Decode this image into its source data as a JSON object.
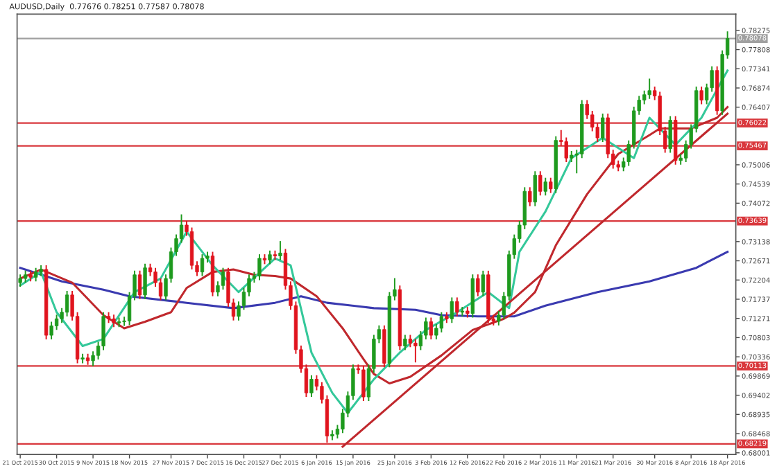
{
  "chart_data": {
    "type": "candlestick",
    "title": "AUDUSD,Daily  0.77676 0.78251 0.77587 0.78078",
    "categories": [
      "21 Oct 2015",
      null,
      null,
      null,
      null,
      null,
      null,
      "30 Oct 2015",
      null,
      null,
      null,
      null,
      null,
      null,
      "9 Nov 2015",
      null,
      null,
      null,
      null,
      null,
      null,
      "18 Nov 2015",
      null,
      null,
      null,
      null,
      null,
      null,
      null,
      "27 Nov 2015",
      null,
      null,
      null,
      null,
      null,
      null,
      "7 Dec 2015",
      null,
      null,
      null,
      null,
      null,
      null,
      "16 Dec 2015",
      null,
      null,
      null,
      null,
      null,
      null,
      "27 Dec 2015",
      null,
      null,
      null,
      null,
      null,
      null,
      "6 Jan 2016",
      null,
      null,
      null,
      null,
      null,
      null,
      "15 Jan 2016",
      null,
      null,
      null,
      null,
      null,
      null,
      null,
      "25 Jan 2016",
      null,
      null,
      null,
      null,
      null,
      null,
      "3 Feb 2016",
      null,
      null,
      null,
      null,
      null,
      null,
      "12 Feb 2016",
      null,
      null,
      null,
      null,
      null,
      null,
      "22 Feb 2016",
      null,
      null,
      null,
      null,
      null,
      null,
      "2 Mar 2016",
      null,
      null,
      null,
      null,
      null,
      null,
      "11 Mar 2016",
      null,
      null,
      null,
      null,
      null,
      null,
      "21 Mar 2016",
      null,
      null,
      null,
      null,
      null,
      null,
      null,
      "30 Mar 2016",
      null,
      null,
      null,
      null,
      null,
      null,
      "8 Apr 2016",
      null,
      null,
      null,
      null,
      null,
      null,
      "18 Apr 2016"
    ],
    "ohlc": [
      [
        0.7214,
        0.7234,
        0.7204,
        0.7224
      ],
      [
        0.7224,
        0.7243,
        0.7214,
        0.7233
      ],
      [
        0.7233,
        0.7243,
        0.7217,
        0.7227
      ],
      [
        0.7227,
        0.725,
        0.7217,
        0.724
      ],
      [
        0.724,
        0.7256,
        0.723,
        0.7246
      ],
      [
        0.7246,
        0.7256,
        0.7076,
        0.7086
      ],
      [
        0.7086,
        0.7119,
        0.7076,
        0.7109
      ],
      [
        0.7109,
        0.7136,
        0.7099,
        0.7126
      ],
      [
        0.7126,
        0.7152,
        0.7116,
        0.7142
      ],
      [
        0.7142,
        0.7194,
        0.7132,
        0.7184
      ],
      [
        0.7184,
        0.7194,
        0.7122,
        0.7132
      ],
      [
        0.7132,
        0.7142,
        0.7018,
        0.7028
      ],
      [
        0.7028,
        0.7041,
        0.7018,
        0.7031
      ],
      [
        0.7031,
        0.7041,
        0.7014,
        0.7024
      ],
      [
        0.7024,
        0.7047,
        0.7011,
        0.7037
      ],
      [
        0.7037,
        0.707,
        0.7027,
        0.706
      ],
      [
        0.706,
        0.7142,
        0.705,
        0.7132
      ],
      [
        0.7132,
        0.7142,
        0.7116,
        0.7126
      ],
      [
        0.7126,
        0.7136,
        0.7106,
        0.7116
      ],
      [
        0.7116,
        0.7129,
        0.7106,
        0.7119
      ],
      [
        0.7119,
        0.7131,
        0.7109,
        0.7121
      ],
      [
        0.7121,
        0.7191,
        0.7111,
        0.7181
      ],
      [
        0.7181,
        0.7243,
        0.7171,
        0.7233
      ],
      [
        0.7233,
        0.7243,
        0.7174,
        0.7184
      ],
      [
        0.7184,
        0.726,
        0.7174,
        0.725
      ],
      [
        0.725,
        0.726,
        0.723,
        0.724
      ],
      [
        0.724,
        0.725,
        0.7204,
        0.7214
      ],
      [
        0.7214,
        0.7224,
        0.7171,
        0.7181
      ],
      [
        0.7181,
        0.7234,
        0.7171,
        0.7224
      ],
      [
        0.7224,
        0.7299,
        0.7214,
        0.7289
      ],
      [
        0.7289,
        0.7331,
        0.7279,
        0.7321
      ],
      [
        0.7321,
        0.738,
        0.7311,
        0.7354
      ],
      [
        0.7354,
        0.7364,
        0.7328,
        0.7338
      ],
      [
        0.7338,
        0.7348,
        0.7246,
        0.7256
      ],
      [
        0.7256,
        0.7266,
        0.723,
        0.724
      ],
      [
        0.724,
        0.7283,
        0.723,
        0.7273
      ],
      [
        0.7273,
        0.7289,
        0.7263,
        0.7279
      ],
      [
        0.7279,
        0.7289,
        0.7181,
        0.7191
      ],
      [
        0.7191,
        0.7217,
        0.7181,
        0.7207
      ],
      [
        0.7207,
        0.725,
        0.7197,
        0.724
      ],
      [
        0.724,
        0.725,
        0.7155,
        0.7165
      ],
      [
        0.7165,
        0.7175,
        0.7122,
        0.7132
      ],
      [
        0.7132,
        0.7168,
        0.7122,
        0.7158
      ],
      [
        0.7158,
        0.7201,
        0.7148,
        0.7191
      ],
      [
        0.7191,
        0.7234,
        0.7181,
        0.7224
      ],
      [
        0.7224,
        0.724,
        0.7214,
        0.723
      ],
      [
        0.723,
        0.7283,
        0.722,
        0.7273
      ],
      [
        0.7273,
        0.7283,
        0.7259,
        0.7269
      ],
      [
        0.7269,
        0.7292,
        0.7259,
        0.7282
      ],
      [
        0.7282,
        0.7292,
        0.7269,
        0.7279
      ],
      [
        0.7279,
        0.7315,
        0.7269,
        0.7286
      ],
      [
        0.7286,
        0.7296,
        0.7197,
        0.7207
      ],
      [
        0.7207,
        0.7217,
        0.7148,
        0.7158
      ],
      [
        0.7158,
        0.7168,
        0.7041,
        0.7051
      ],
      [
        0.7051,
        0.7061,
        0.6995,
        0.7005
      ],
      [
        0.7005,
        0.7015,
        0.6936,
        0.6946
      ],
      [
        0.6946,
        0.6989,
        0.6936,
        0.6979
      ],
      [
        0.6979,
        0.6989,
        0.6952,
        0.6962
      ],
      [
        0.6962,
        0.6972,
        0.692,
        0.693
      ],
      [
        0.693,
        0.694,
        0.6825,
        0.6841
      ],
      [
        0.6841,
        0.6855,
        0.6831,
        0.6845
      ],
      [
        0.6845,
        0.6868,
        0.6835,
        0.6858
      ],
      [
        0.6858,
        0.6907,
        0.6848,
        0.6897
      ],
      [
        0.6897,
        0.6949,
        0.6887,
        0.6939
      ],
      [
        0.6939,
        0.7015,
        0.6929,
        0.7005
      ],
      [
        0.7005,
        0.7015,
        0.6992,
        0.7002
      ],
      [
        0.7002,
        0.7012,
        0.6926,
        0.6936
      ],
      [
        0.6936,
        0.7015,
        0.6926,
        0.7005
      ],
      [
        0.7005,
        0.7087,
        0.6995,
        0.7077
      ],
      [
        0.7077,
        0.711,
        0.7067,
        0.71
      ],
      [
        0.71,
        0.711,
        0.7008,
        0.7018
      ],
      [
        0.7018,
        0.7191,
        0.7008,
        0.7181
      ],
      [
        0.7181,
        0.7225,
        0.7171,
        0.7197
      ],
      [
        0.7197,
        0.7207,
        0.705,
        0.706
      ],
      [
        0.706,
        0.7087,
        0.705,
        0.7077
      ],
      [
        0.7077,
        0.7087,
        0.7057,
        0.7067
      ],
      [
        0.7067,
        0.7077,
        0.702,
        0.706
      ],
      [
        0.706,
        0.7096,
        0.705,
        0.7086
      ],
      [
        0.7086,
        0.7129,
        0.7076,
        0.7119
      ],
      [
        0.7119,
        0.7129,
        0.7076,
        0.7086
      ],
      [
        0.7086,
        0.7113,
        0.7076,
        0.7103
      ],
      [
        0.7103,
        0.7142,
        0.7093,
        0.7132
      ],
      [
        0.7132,
        0.7142,
        0.7116,
        0.7126
      ],
      [
        0.7126,
        0.7178,
        0.7116,
        0.7168
      ],
      [
        0.7168,
        0.7178,
        0.7132,
        0.7142
      ],
      [
        0.7142,
        0.7155,
        0.7132,
        0.7145
      ],
      [
        0.7145,
        0.7155,
        0.7129,
        0.7139
      ],
      [
        0.7139,
        0.7234,
        0.7129,
        0.7224
      ],
      [
        0.7224,
        0.7234,
        0.7181,
        0.7191
      ],
      [
        0.7191,
        0.7243,
        0.7181,
        0.7233
      ],
      [
        0.7233,
        0.7243,
        0.7116,
        0.7126
      ],
      [
        0.7126,
        0.7136,
        0.711,
        0.712
      ],
      [
        0.712,
        0.7145,
        0.711,
        0.7135
      ],
      [
        0.7135,
        0.7191,
        0.7125,
        0.7181
      ],
      [
        0.7181,
        0.7292,
        0.7171,
        0.7282
      ],
      [
        0.7282,
        0.7331,
        0.7272,
        0.7321
      ],
      [
        0.7321,
        0.7364,
        0.7311,
        0.7354
      ],
      [
        0.7354,
        0.7446,
        0.7344,
        0.7436
      ],
      [
        0.7436,
        0.7446,
        0.74,
        0.741
      ],
      [
        0.741,
        0.7485,
        0.74,
        0.7475
      ],
      [
        0.7475,
        0.7485,
        0.7426,
        0.7436
      ],
      [
        0.7436,
        0.7469,
        0.7426,
        0.7459
      ],
      [
        0.7459,
        0.7469,
        0.7432,
        0.7442
      ],
      [
        0.7442,
        0.757,
        0.7432,
        0.756
      ],
      [
        0.756,
        0.7585,
        0.7547,
        0.7557
      ],
      [
        0.7557,
        0.7567,
        0.7507,
        0.7517
      ],
      [
        0.7517,
        0.7534,
        0.7507,
        0.7524
      ],
      [
        0.7524,
        0.7537,
        0.748,
        0.7527
      ],
      [
        0.7527,
        0.7658,
        0.7517,
        0.7648
      ],
      [
        0.7648,
        0.7658,
        0.7612,
        0.7622
      ],
      [
        0.7622,
        0.7632,
        0.7582,
        0.7592
      ],
      [
        0.7592,
        0.7602,
        0.7556,
        0.7566
      ],
      [
        0.7566,
        0.7625,
        0.7556,
        0.7615
      ],
      [
        0.7615,
        0.7625,
        0.7517,
        0.7527
      ],
      [
        0.7527,
        0.7537,
        0.7491,
        0.7501
      ],
      [
        0.7501,
        0.7511,
        0.7485,
        0.7495
      ],
      [
        0.7495,
        0.7518,
        0.7485,
        0.7508
      ],
      [
        0.7508,
        0.756,
        0.7498,
        0.755
      ],
      [
        0.755,
        0.7642,
        0.754,
        0.7632
      ],
      [
        0.7632,
        0.7668,
        0.7622,
        0.7658
      ],
      [
        0.7658,
        0.7681,
        0.7648,
        0.7671
      ],
      [
        0.7671,
        0.771,
        0.7661,
        0.7681
      ],
      [
        0.7681,
        0.7691,
        0.7658,
        0.7668
      ],
      [
        0.7668,
        0.7678,
        0.7573,
        0.7583
      ],
      [
        0.7583,
        0.7593,
        0.753,
        0.754
      ],
      [
        0.754,
        0.7619,
        0.753,
        0.7609
      ],
      [
        0.7609,
        0.7619,
        0.7501,
        0.7511
      ],
      [
        0.7511,
        0.7527,
        0.7501,
        0.7517
      ],
      [
        0.7517,
        0.756,
        0.7507,
        0.755
      ],
      [
        0.755,
        0.7599,
        0.754,
        0.7589
      ],
      [
        0.7589,
        0.7691,
        0.7579,
        0.7681
      ],
      [
        0.7681,
        0.7691,
        0.7648,
        0.7658
      ],
      [
        0.7658,
        0.7698,
        0.7648,
        0.7688
      ],
      [
        0.7688,
        0.774,
        0.7678,
        0.773
      ],
      [
        0.773,
        0.774,
        0.7622,
        0.7632
      ],
      [
        0.7632,
        0.7779,
        0.7622,
        0.7769
      ],
      [
        0.77676,
        0.78251,
        0.77587,
        0.78078
      ]
    ],
    "colors": [
      "#1e9a1e",
      "#1e9a1e",
      "#e0141e",
      "#1e9a1e",
      "#1e9a1e",
      "#e0141e",
      "#1e9a1e",
      "#1e9a1e",
      "#1e9a1e",
      "#1e9a1e",
      "#e0141e",
      "#e0141e",
      "#1e9a1e",
      "#e0141e",
      "#1e9a1e",
      "#1e9a1e",
      "#1e9a1e",
      "#e0141e",
      "#e0141e",
      "#1e9a1e",
      "#1e9a1e",
      "#1e9a1e",
      "#1e9a1e",
      "#e0141e",
      "#1e9a1e",
      "#e0141e",
      "#e0141e",
      "#e0141e",
      "#1e9a1e",
      "#1e9a1e",
      "#1e9a1e",
      "#1e9a1e",
      "#e0141e",
      "#e0141e",
      "#e0141e",
      "#1e9a1e",
      "#1e9a1e",
      "#e0141e",
      "#1e9a1e",
      "#1e9a1e",
      "#e0141e",
      "#e0141e",
      "#1e9a1e",
      "#1e9a1e",
      "#1e9a1e",
      "#1e9a1e",
      "#1e9a1e",
      "#e0141e",
      "#1e9a1e",
      "#e0141e",
      "#1e9a1e",
      "#e0141e",
      "#e0141e",
      "#e0141e",
      "#e0141e",
      "#e0141e",
      "#1e9a1e",
      "#e0141e",
      "#e0141e",
      "#e0141e",
      "#1e9a1e",
      "#1e9a1e",
      "#1e9a1e",
      "#1e9a1e",
      "#1e9a1e",
      "#e0141e",
      "#e0141e",
      "#1e9a1e",
      "#1e9a1e",
      "#1e9a1e",
      "#e0141e",
      "#1e9a1e",
      "#1e9a1e",
      "#e0141e",
      "#1e9a1e",
      "#e0141e",
      "#e0141e",
      "#1e9a1e",
      "#1e9a1e",
      "#e0141e",
      "#1e9a1e",
      "#1e9a1e",
      "#e0141e",
      "#1e9a1e",
      "#e0141e",
      "#1e9a1e",
      "#e0141e",
      "#1e9a1e",
      "#e0141e",
      "#1e9a1e",
      "#e0141e",
      "#e0141e",
      "#1e9a1e",
      "#1e9a1e",
      "#1e9a1e",
      "#1e9a1e",
      "#1e9a1e",
      "#1e9a1e",
      "#e0141e",
      "#1e9a1e",
      "#e0141e",
      "#1e9a1e",
      "#e0141e",
      "#1e9a1e",
      "#e0141e",
      "#e0141e",
      "#1e9a1e",
      "#1e9a1e",
      "#1e9a1e",
      "#e0141e",
      "#e0141e",
      "#e0141e",
      "#1e9a1e",
      "#e0141e",
      "#e0141e",
      "#e0141e",
      "#1e9a1e",
      "#1e9a1e",
      "#1e9a1e",
      "#1e9a1e",
      "#1e9a1e",
      "#1e9a1e",
      "#e0141e",
      "#e0141e",
      "#e0141e",
      "#1e9a1e",
      "#e0141e",
      "#1e9a1e",
      "#1e9a1e",
      "#1e9a1e",
      "#1e9a1e",
      "#e0141e",
      "#1e9a1e",
      "#1e9a1e",
      "#e0141e",
      "#1e9a1e",
      "#1e9a1e"
    ],
    "series": [
      {
        "type": "line",
        "color": "#3a3ab0",
        "values": [
          0.725,
          null,
          null,
          null,
          null,
          null,
          null,
          null,
          0.7217,
          null,
          null,
          null,
          null,
          null,
          null,
          null,
          0.7197,
          null,
          null,
          null,
          null,
          0.7181,
          null,
          null,
          null,
          null,
          null,
          null,
          null,
          null,
          null,
          null,
          0.7165,
          null,
          null,
          null,
          null,
          null,
          null,
          null,
          null,
          0.7152,
          null,
          null,
          null,
          null,
          null,
          null,
          null,
          0.7165,
          null,
          null,
          null,
          null,
          0.7181,
          null,
          null,
          null,
          null,
          0.7165,
          null,
          null,
          null,
          null,
          null,
          null,
          null,
          null,
          0.7152,
          null,
          null,
          null,
          null,
          null,
          null,
          null,
          0.7148,
          null,
          null,
          null,
          null,
          0.7135,
          null,
          null,
          null,
          null,
          null,
          null,
          0.7132,
          null,
          null,
          null,
          null,
          null,
          null,
          0.7132,
          null,
          null,
          null,
          null,
          null,
          0.7158,
          null,
          null,
          null,
          null,
          null,
          null,
          null,
          null,
          null,
          0.7191,
          null,
          null,
          null,
          null,
          null,
          null,
          null,
          null,
          null,
          0.7217,
          null,
          null,
          null,
          null,
          null,
          null,
          null,
          null,
          0.725,
          null,
          null,
          null,
          null,
          null,
          0.7289
        ]
      },
      {
        "type": "line",
        "color": "#c0282d",
        "values": [
          0.7224,
          null,
          null,
          null,
          0.7246,
          null,
          null,
          null,
          null,
          null,
          0.7214,
          null,
          null,
          null,
          null,
          null,
          0.7135,
          null,
          null,
          null,
          0.7103,
          null,
          null,
          null,
          0.7119,
          null,
          null,
          null,
          null,
          0.7142,
          null,
          null,
          0.7201,
          null,
          null,
          null,
          null,
          0.724,
          null,
          null,
          null,
          0.7246,
          null,
          null,
          null,
          0.7233,
          null,
          null,
          null,
          0.723,
          null,
          null,
          0.7224,
          null,
          null,
          null,
          null,
          0.7181,
          null,
          null,
          null,
          null,
          0.7103,
          null,
          null,
          null,
          0.7028,
          null,
          0.6992,
          null,
          null,
          0.6969,
          null,
          null,
          null,
          0.6985,
          null,
          null,
          null,
          null,
          null,
          0.7037,
          null,
          null,
          null,
          null,
          null,
          0.7099,
          null,
          null,
          null,
          null,
          null,
          0.7126,
          null,
          0.7141,
          null,
          null,
          null,
          0.7191,
          null,
          null,
          null,
          0.7305,
          null,
          null,
          null,
          null,
          null,
          0.7429,
          null,
          null,
          null,
          null,
          null,
          0.7527,
          null,
          null,
          null,
          null,
          null,
          0.7573,
          null,
          0.7589,
          null,
          null,
          null,
          null,
          null,
          0.7589,
          null,
          null,
          null,
          null,
          0.7615,
          null,
          0.7641
        ]
      },
      {
        "type": "line",
        "color": "#34c89a",
        "values": [
          0.7207,
          null,
          null,
          null,
          0.724,
          null,
          null,
          0.7142,
          null,
          null,
          null,
          null,
          0.706,
          null,
          null,
          null,
          0.7077,
          null,
          null,
          null,
          null,
          null,
          0.7191,
          null,
          null,
          null,
          null,
          0.7224,
          null,
          null,
          null,
          null,
          0.7338,
          null,
          null,
          null,
          null,
          0.7256,
          null,
          null,
          null,
          null,
          0.7191,
          null,
          null,
          null,
          null,
          null,
          null,
          0.7273,
          null,
          null,
          0.7256,
          null,
          null,
          null,
          0.7044,
          null,
          null,
          null,
          0.6946,
          null,
          null,
          0.6897,
          null,
          null,
          null,
          null,
          0.6979,
          null,
          null,
          null,
          null,
          0.7044,
          null,
          null,
          null,
          null,
          0.7099,
          null,
          null,
          null,
          null,
          null,
          0.7142,
          null,
          null,
          null,
          null,
          null,
          0.7191,
          null,
          null,
          null,
          0.7152,
          null,
          0.7289,
          null,
          null,
          null,
          null,
          0.7387,
          null,
          null,
          null,
          null,
          0.7517,
          null,
          null,
          null,
          null,
          null,
          0.7566,
          null,
          null,
          null,
          null,
          null,
          0.7517,
          null,
          null,
          0.7615,
          null,
          null,
          null,
          null,
          0.7549,
          null,
          null,
          null,
          null,
          0.7615,
          null,
          null,
          null,
          null,
          0.773
        ]
      },
      {
        "type": "line",
        "color": "#c0282d",
        "values": [
          null,
          null,
          null,
          null,
          null,
          null,
          null,
          null,
          null,
          null,
          null,
          null,
          null,
          null,
          null,
          null,
          null,
          null,
          null,
          null,
          null,
          null,
          null,
          null,
          null,
          null,
          null,
          null,
          null,
          null,
          null,
          null,
          null,
          null,
          null,
          null,
          null,
          null,
          null,
          null,
          null,
          null,
          null,
          null,
          null,
          null,
          null,
          null,
          null,
          null,
          null,
          null,
          null,
          null,
          null,
          null,
          null,
          null,
          null,
          null,
          null,
          null,
          0.6815,
          null,
          null,
          null,
          null,
          null,
          null,
          null,
          null,
          null,
          null,
          null,
          null,
          null,
          null,
          null,
          null,
          null,
          null,
          null,
          null,
          null,
          null,
          null,
          null,
          null,
          null,
          null,
          null,
          null,
          null,
          null,
          null,
          null,
          null,
          null,
          null,
          null,
          null,
          null,
          null,
          null,
          null,
          null,
          null,
          null,
          null,
          null,
          null,
          null,
          null,
          null,
          null,
          null,
          null,
          null,
          null,
          null,
          null,
          null,
          null,
          null,
          null,
          null,
          null,
          null,
          null,
          null,
          null,
          null,
          null,
          null,
          null,
          null,
          0.7625
        ]
      }
    ],
    "ref_lines": [
      {
        "axis": "y",
        "value": 0.78078,
        "label": "0.78078",
        "color": "#a0a0a0"
      },
      {
        "axis": "y",
        "value": 0.76022,
        "label": "0.76022",
        "color": "#d9373c"
      },
      {
        "axis": "y",
        "value": 0.75467,
        "label": "0.75467",
        "color": "#d9373c"
      },
      {
        "axis": "y",
        "value": 0.73639,
        "label": "0.73639",
        "color": "#d9373c"
      },
      {
        "axis": "y",
        "value": 0.70113,
        "label": "0.70113",
        "color": "#d9373c"
      },
      {
        "axis": "y",
        "value": 0.68219,
        "label": "0.68219",
        "color": "#d9373c"
      }
    ],
    "ylim": [
      0.6796,
      0.7867
    ],
    "yticks": [
      0.78275,
      0.77808,
      0.77341,
      0.76874,
      0.76407,
      0.75006,
      0.74539,
      0.74072,
      0.73138,
      0.72671,
      0.72204,
      0.71737,
      0.71271,
      0.70803,
      0.70336,
      0.69869,
      0.69402,
      0.68935,
      0.68468,
      0.68001
    ],
    "grid": false
  }
}
